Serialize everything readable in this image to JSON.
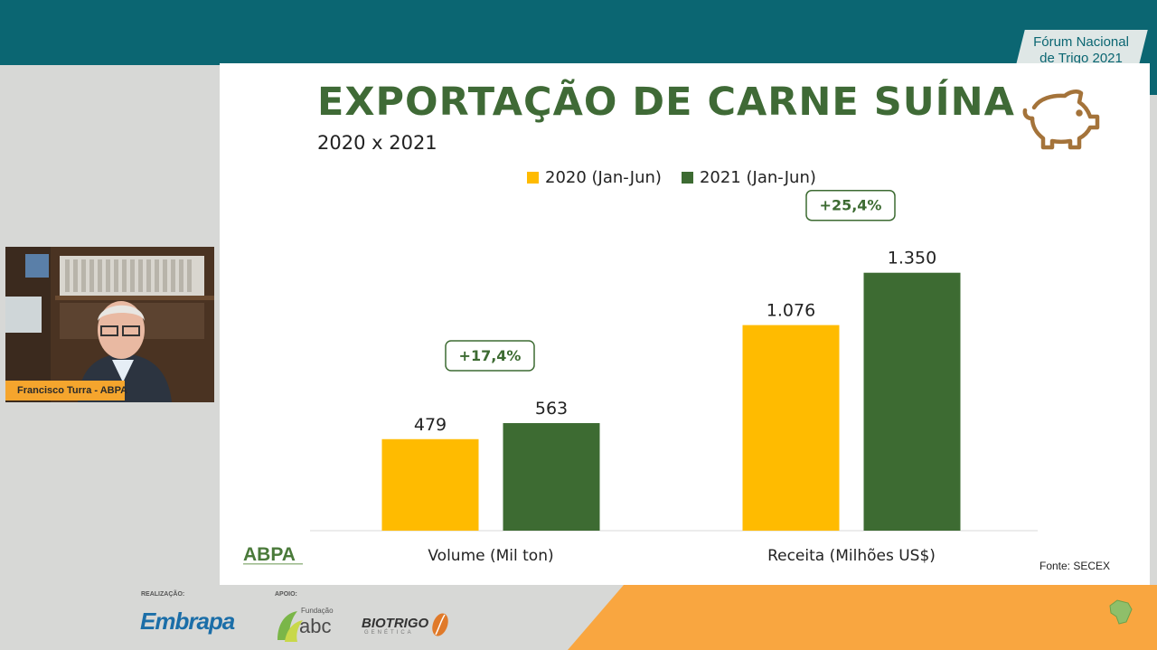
{
  "forum": {
    "line1": "Fórum Nacional",
    "line2": "de Trigo 2021"
  },
  "slide": {
    "title": "EXPORTAÇÃO DE CARNE SUÍNA",
    "subtitle": "2020 x 2021",
    "source": "Fonte: SECEX",
    "abpa_logo": "ABPA"
  },
  "icons": {
    "pig": "pig-icon"
  },
  "colors": {
    "series_2020": "#ffbb00",
    "series_2021": "#3d6b32",
    "title": "#3f6a36",
    "teal": "#0b6672",
    "orange": "#f9a640"
  },
  "chart_data": {
    "type": "bar",
    "categories": [
      "Volume (Mil ton)",
      "Receita (Milhões US$)"
    ],
    "series": [
      {
        "name": "2020 (Jan-Jun)",
        "values": [
          479,
          1076
        ],
        "labels": [
          "479",
          "1.076"
        ]
      },
      {
        "name": "2021 (Jan-Jun)",
        "values": [
          563,
          1350
        ],
        "labels": [
          "563",
          "1.350"
        ]
      }
    ],
    "annotations": [
      "+17,4%",
      "+25,4%"
    ],
    "legend": "top-center",
    "grid": false
  },
  "webcam": {
    "name_tag": "Francisco Turra - ABPA"
  },
  "footer": {
    "realizacao_label": "REALIZAÇÃO:",
    "apoio_label": "APOIO:",
    "embrapa": "Embrapa",
    "fundacao_line1": "Fundação",
    "fundacao_line2": "abc",
    "biotrigo": "BIOTRIGO",
    "biotrigo_sub": "GENÉTICA"
  }
}
